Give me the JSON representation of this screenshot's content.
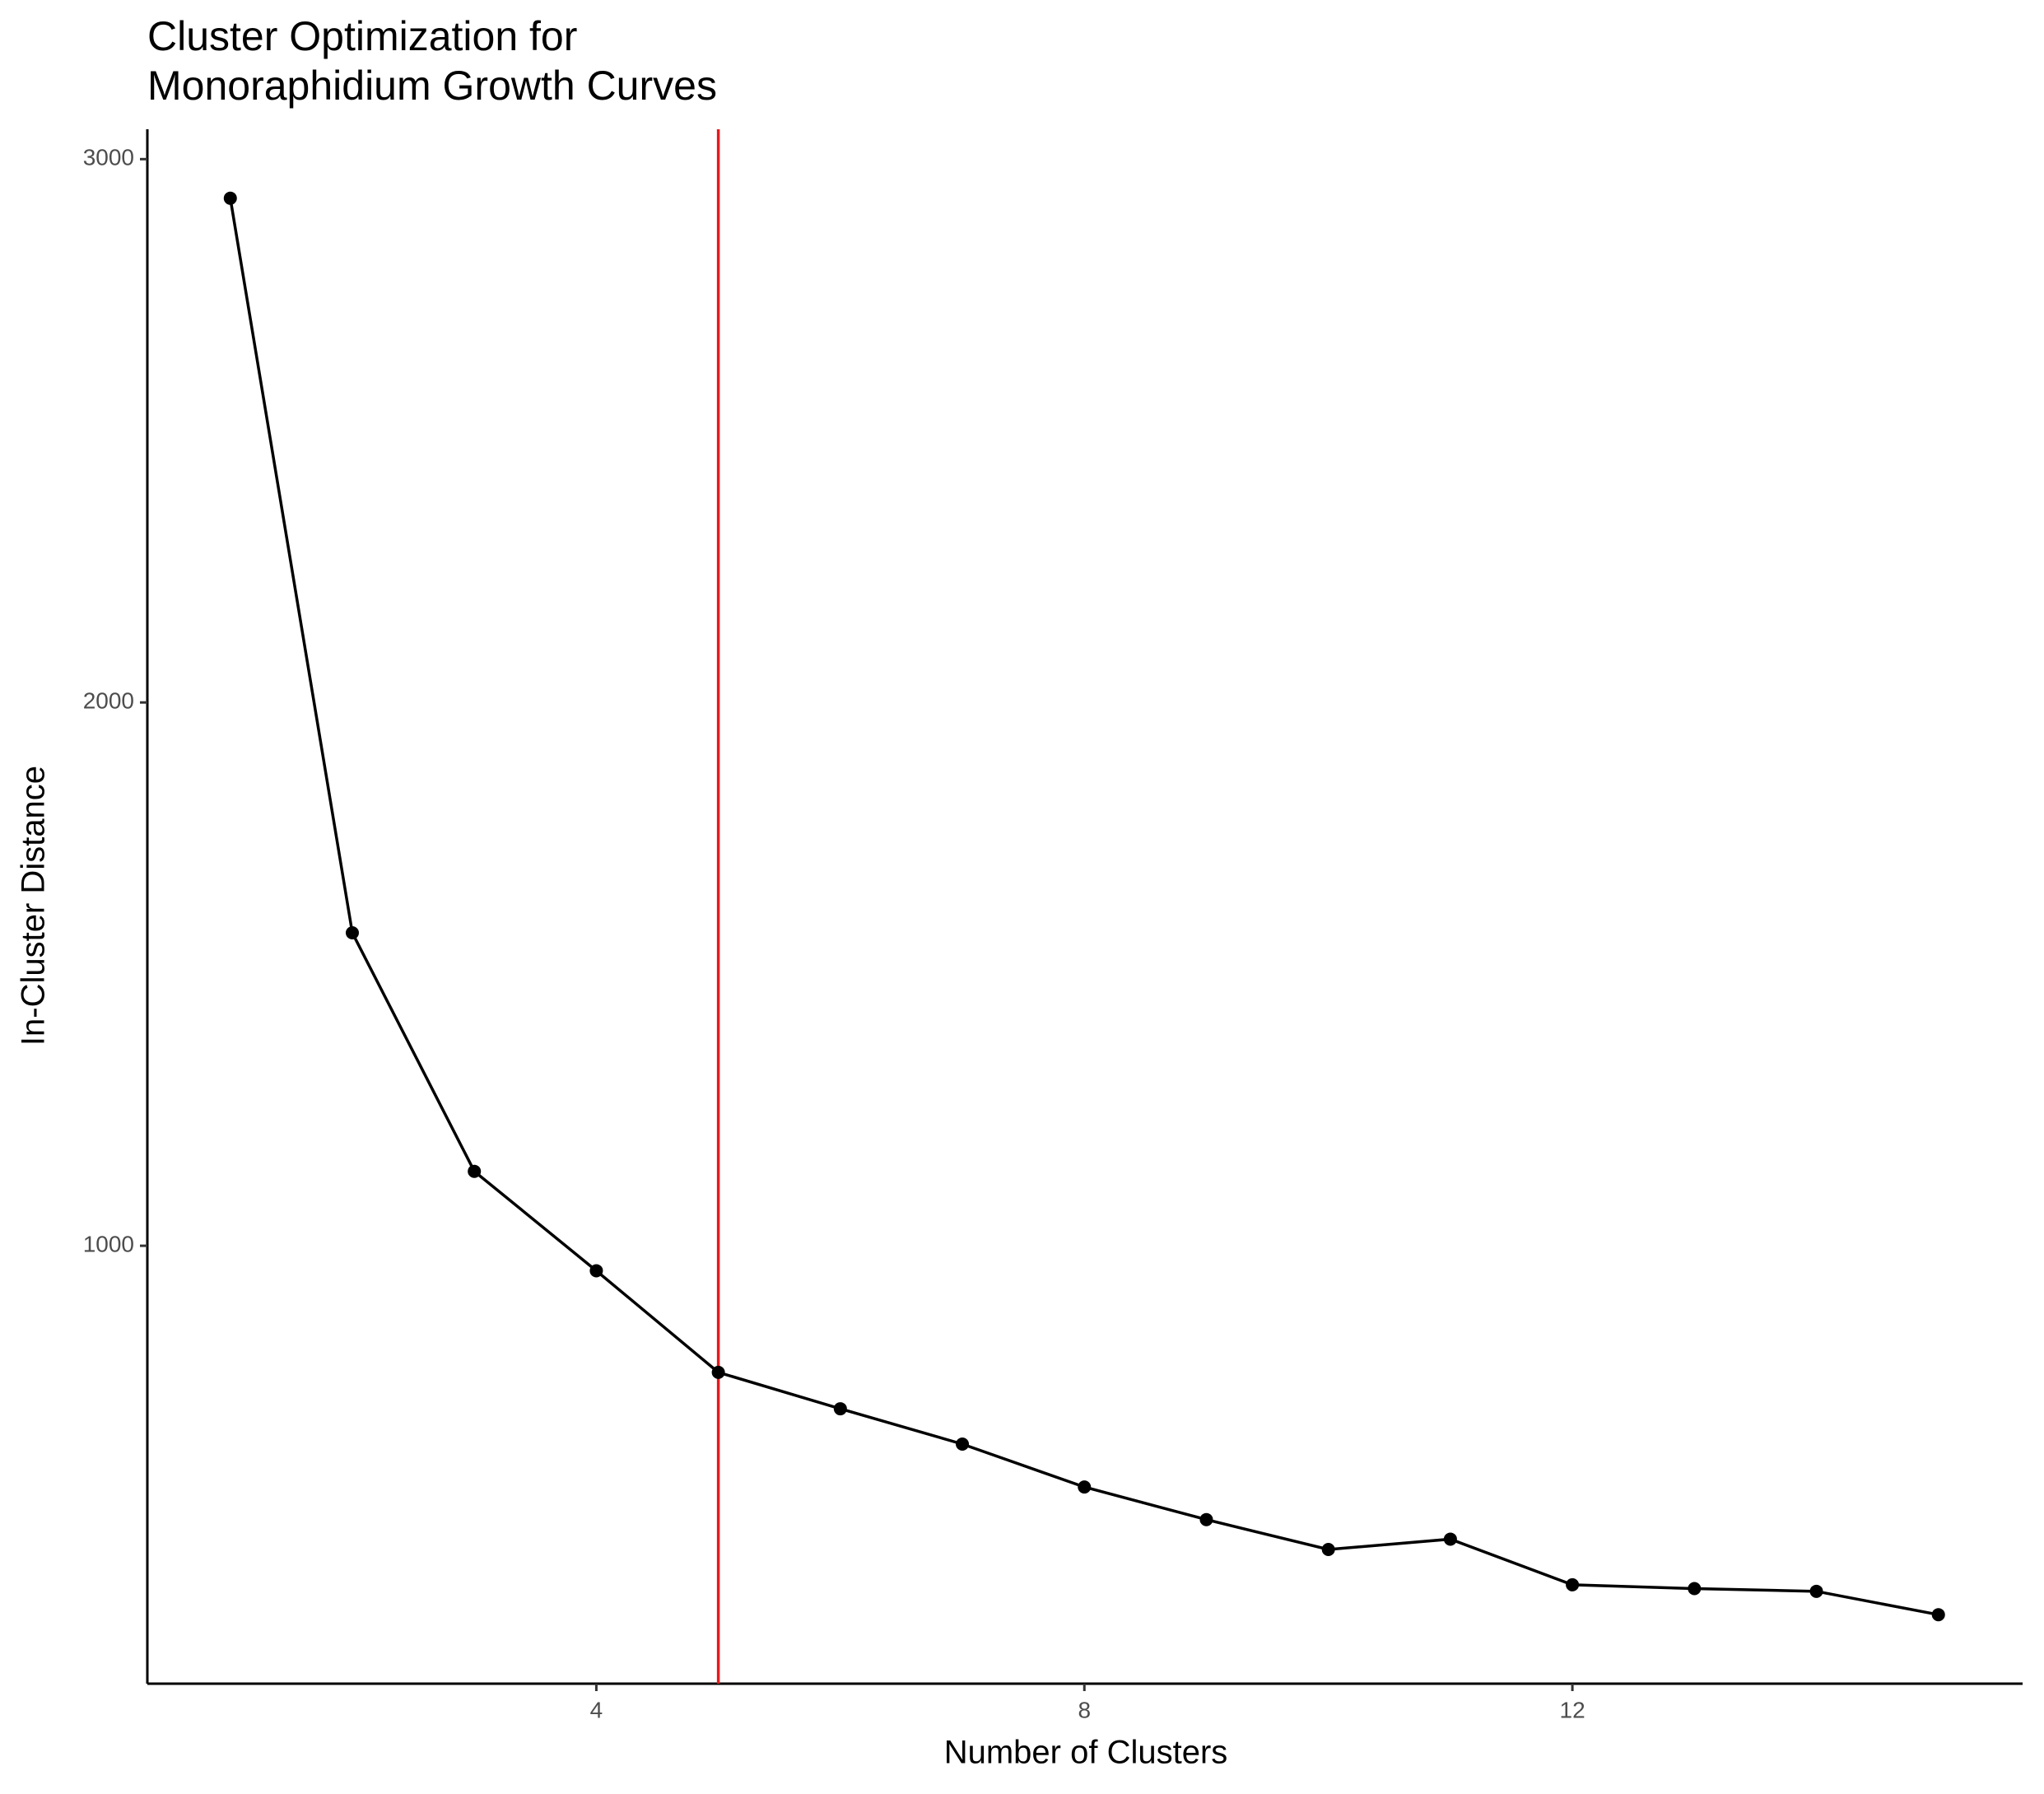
{
  "chart_data": {
    "type": "line",
    "title": "Cluster Optimization for\nMonoraphidium Growth Curves",
    "x_label": "Number of Clusters",
    "y_label": "In-Cluster Distance",
    "x": [
      1,
      2,
      3,
      4,
      5,
      6,
      7,
      8,
      9,
      10,
      11,
      12,
      13,
      14,
      15
    ],
    "series": [
      {
        "color": "#000000",
        "values": [
          2928,
          1576,
          1137,
          954,
          767,
          700,
          635,
          556,
          496,
          441,
          460,
          376,
          369,
          364,
          321
        ]
      }
    ],
    "vline": 5,
    "vline_color": "#e41a1c",
    "xlim": [
      0.32,
      15.69
    ],
    "xticks": [
      4,
      8,
      12
    ],
    "ylim": [
      194,
      3055
    ],
    "yticks": [
      1000,
      2000,
      3000
    ],
    "grid": false
  }
}
